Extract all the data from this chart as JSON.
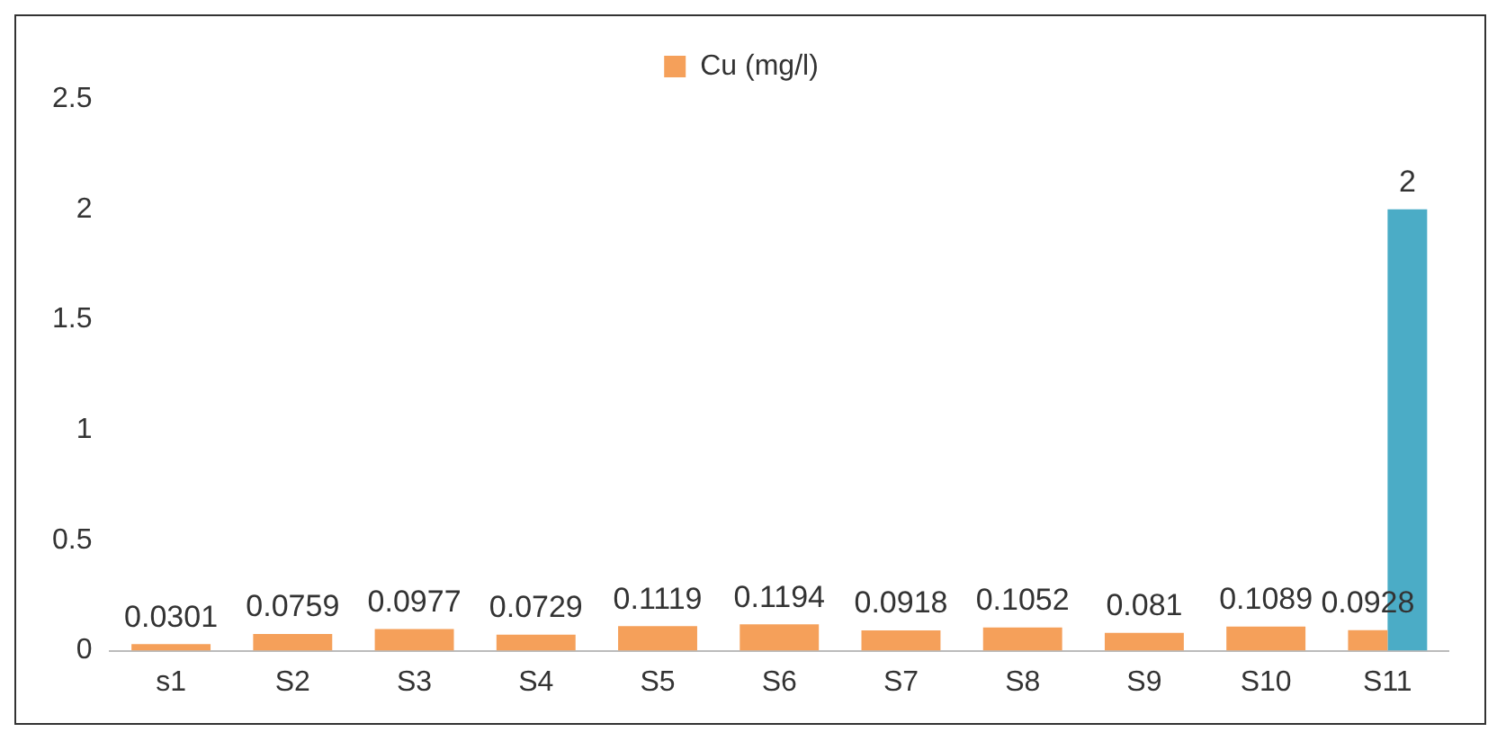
{
  "chart_data": {
    "type": "bar",
    "categories": [
      "s1",
      "S2",
      "S3",
      "S4",
      "S5",
      "S6",
      "S7",
      "S8",
      "S9",
      "S10",
      "S11"
    ],
    "series": [
      {
        "name": "Cu (mg/l)",
        "color": "#f5a05a",
        "values": [
          0.0301,
          0.0759,
          0.0977,
          0.0729,
          0.1119,
          0.1194,
          0.0918,
          0.1052,
          0.081,
          0.1089,
          0.0928
        ]
      },
      {
        "color": "#4bacc6",
        "values": [
          null,
          null,
          null,
          null,
          null,
          null,
          null,
          null,
          null,
          null,
          2
        ]
      }
    ],
    "ylim": [
      0,
      2.5
    ],
    "yticks": [
      0,
      0.5,
      1,
      1.5,
      2,
      2.5
    ],
    "grid": false,
    "legend": "top",
    "data_labels": true
  }
}
